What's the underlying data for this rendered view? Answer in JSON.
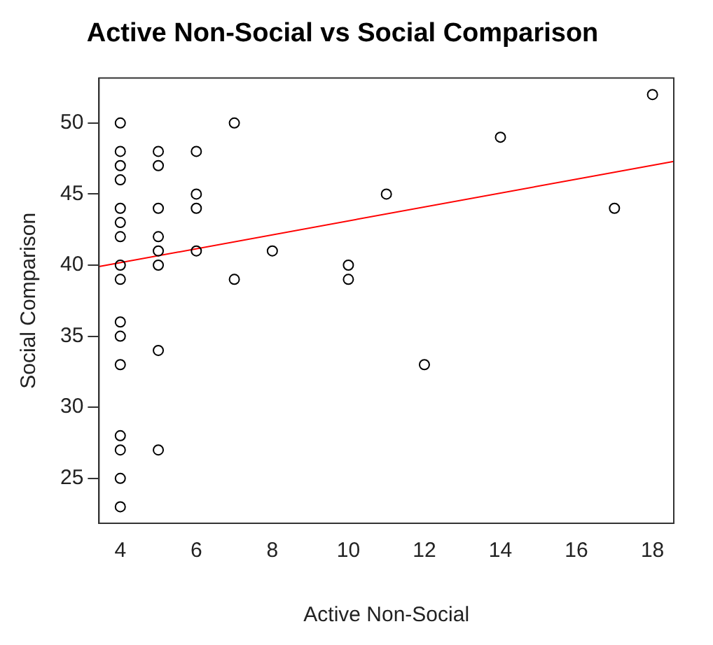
{
  "chart_data": {
    "type": "scatter",
    "title": "Active Non-Social vs Social Comparison",
    "xlabel": "Active Non-Social",
    "ylabel": "Social Comparison",
    "xlim": [
      3.44,
      18.56
    ],
    "ylim": [
      21.84,
      53.16
    ],
    "xticks": [
      4,
      6,
      8,
      10,
      12,
      14,
      16,
      18
    ],
    "yticks": [
      25,
      30,
      35,
      40,
      45,
      50
    ],
    "grid": false,
    "legend": false,
    "marker": "circle",
    "series": [
      {
        "color": "#000000",
        "x": [
          4,
          4,
          4,
          4,
          4,
          4,
          4,
          4,
          4,
          4,
          4,
          4,
          4,
          4,
          4,
          4,
          5,
          5,
          5,
          5,
          5,
          5,
          5,
          5,
          6,
          6,
          6,
          6,
          7,
          7,
          8,
          10,
          10,
          11,
          12,
          14,
          17,
          18
        ],
        "values": [
          50,
          48,
          47,
          46,
          44,
          43,
          42,
          40,
          39,
          36,
          35,
          33,
          28,
          27,
          25,
          23,
          48,
          47,
          44,
          42,
          41,
          40,
          34,
          27,
          48,
          45,
          44,
          41,
          50,
          39,
          41,
          40,
          39,
          45,
          33,
          49,
          44,
          52
        ]
      },
      {
        "type": "line",
        "marker": "none",
        "color": "#ff0000",
        "x": [
          3.44,
          18.56
        ],
        "values": [
          39.9,
          47.3
        ]
      }
    ]
  }
}
